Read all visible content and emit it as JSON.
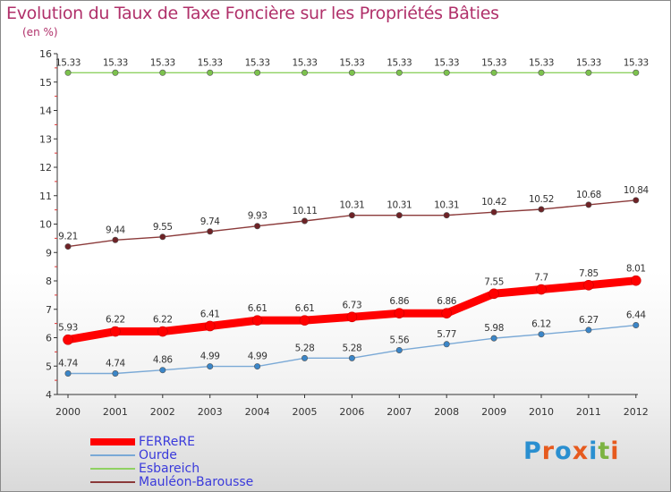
{
  "title": "Evolution du Taux de Taxe Foncière sur les Propriétés Bâties",
  "unit_label": "(en %)",
  "logo": {
    "text": "Proxiti",
    "letter_colors": [
      "#2a8fd0",
      "#e65a1e",
      "#2a8fd0",
      "#e65a1e",
      "#2a8fd0",
      "#7cb342",
      "#e65a1e"
    ]
  },
  "chart_data": {
    "type": "line",
    "x": [
      "2000",
      "2001",
      "2002",
      "2003",
      "2004",
      "2005",
      "2006",
      "2007",
      "2008",
      "2009",
      "2010",
      "2011",
      "2012"
    ],
    "ylim": [
      4,
      16
    ],
    "yticks": [
      "4",
      "5",
      "6",
      "7",
      "8",
      "9",
      "10",
      "11",
      "12",
      "13",
      "14",
      "15",
      "16"
    ],
    "grid": false,
    "legend_position": "bottom-left",
    "series": [
      {
        "name": "Esbareich",
        "color": "#8fd162",
        "marker_color": "#7cc24d",
        "values": [
          15.33,
          15.33,
          15.33,
          15.33,
          15.33,
          15.33,
          15.33,
          15.33,
          15.33,
          15.33,
          15.33,
          15.33,
          15.33
        ],
        "labels": [
          "15.33",
          "15.33",
          "15.33",
          "15.33",
          "15.33",
          "15.33",
          "15.33",
          "15.33",
          "15.33",
          "15.33",
          "15.33",
          "15.33",
          "15.33"
        ]
      },
      {
        "name": "Mauléon-Barousse",
        "color": "#8b3a3a",
        "marker_color": "#6e2226",
        "values": [
          9.21,
          9.44,
          9.55,
          9.74,
          9.93,
          10.11,
          10.31,
          10.31,
          10.31,
          10.42,
          10.52,
          10.68,
          10.84
        ],
        "labels": [
          "9.21",
          "9.44",
          "9.55",
          "9.74",
          "9.93",
          "10.11",
          "10.31",
          "10.31",
          "10.31",
          "10.42",
          "10.52",
          "10.68",
          "10.84"
        ]
      },
      {
        "name": "FERReRE",
        "color": "#ff0000",
        "marker_color": "#ff0000",
        "values": [
          5.93,
          6.22,
          6.22,
          6.41,
          6.61,
          6.61,
          6.73,
          6.86,
          6.86,
          7.55,
          7.7,
          7.85,
          8.01
        ],
        "labels": [
          "5.93",
          "6.22",
          "6.22",
          "6.41",
          "6.61",
          "6.61",
          "6.73",
          "6.86",
          "6.86",
          "7.55",
          "7.7",
          "7.85",
          "8.01"
        ]
      },
      {
        "name": "Ourde",
        "color": "#7aa9d6",
        "marker_color": "#3b86c8",
        "values": [
          4.74,
          4.74,
          4.86,
          4.99,
          4.99,
          5.28,
          5.28,
          5.56,
          5.77,
          5.98,
          6.12,
          6.27,
          6.44
        ],
        "labels": [
          "4.74",
          "4.74",
          "4.86",
          "4.99",
          "4.99",
          "5.28",
          "5.28",
          "5.56",
          "5.77",
          "5.98",
          "6.12",
          "6.27",
          "6.44"
        ]
      }
    ],
    "legend_order": [
      "FERReRE",
      "Ourde",
      "Esbareich",
      "Mauléon-Barousse"
    ]
  }
}
